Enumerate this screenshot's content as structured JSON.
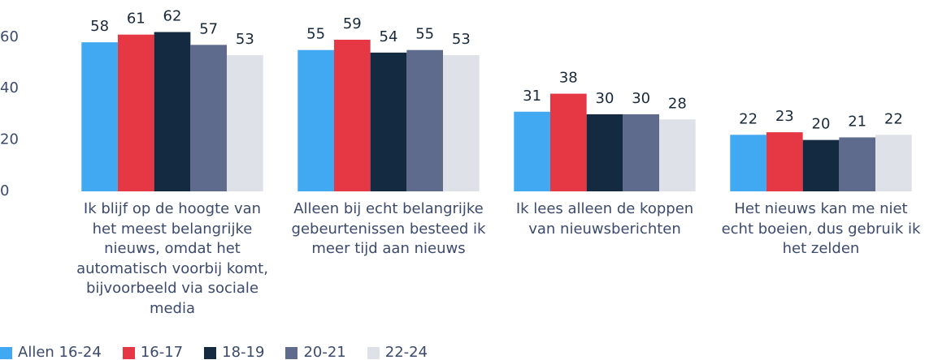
{
  "chart_data": {
    "type": "bar",
    "categories": [
      "Ik blijf op de hoogte van het meest belangrijke nieuws, omdat het automatisch voorbij komt, bijvoorbeeld via sociale media",
      "Alleen bij echt belangrijke gebeurtenissen besteed ik meer tijd aan nieuws",
      "Ik lees alleen de koppen van nieuwsberichten",
      "Het nieuws kan me niet echt boeien, dus gebruik ik het zelden"
    ],
    "series": [
      {
        "name": "Allen 16-24",
        "color": "#41a9f1",
        "values": [
          58,
          55,
          31,
          22
        ]
      },
      {
        "name": "16-17",
        "color": "#e63744",
        "values": [
          61,
          59,
          38,
          23
        ]
      },
      {
        "name": "18-19",
        "color": "#132a40",
        "values": [
          62,
          54,
          30,
          20
        ]
      },
      {
        "name": "20-21",
        "color": "#5e6b8c",
        "values": [
          57,
          55,
          30,
          21
        ]
      },
      {
        "name": "22-24",
        "color": "#dfe1e8",
        "values": [
          53,
          53,
          28,
          22
        ]
      }
    ],
    "ylim": [
      0,
      65
    ],
    "yticks": [
      0,
      20,
      40,
      60
    ],
    "grid": false,
    "legend": "bottom"
  }
}
